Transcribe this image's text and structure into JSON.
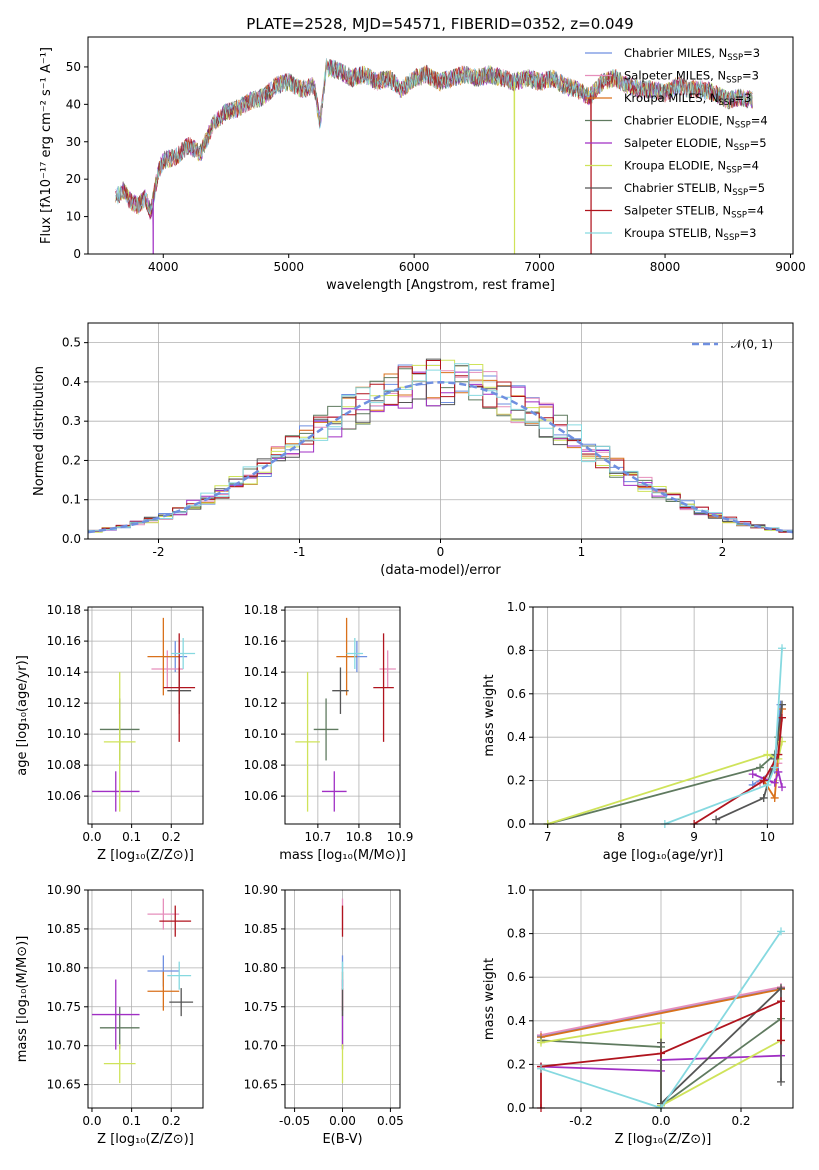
{
  "colors": {
    "Chabrier MILES": "#6f8fe0",
    "Salpeter MILES": "#e68fbc",
    "Kroupa MILES": "#d9711b",
    "Chabrier ELODIE": "#5f7a5f",
    "Salpeter ELODIE": "#a02fc4",
    "Kroupa ELODIE": "#cfe35a",
    "Chabrier STELIB": "#555555",
    "Salpeter STELIB": "#b0141e",
    "Kroupa STELIB": "#86d9e0"
  },
  "chart_data": [
    {
      "id": "spectrum",
      "type": "line",
      "title": "PLATE=2528, MJD=54571, FIBERID=0352, z=0.049",
      "xlabel": "wavelength [Angstrom, rest frame]",
      "ylabel": "Flux [fλ10⁻¹⁷ erg cm⁻² s⁻¹ A⁻¹]",
      "xlim": [
        3400,
        9020
      ],
      "ylim": [
        0,
        58
      ],
      "xticks": [
        4000,
        5000,
        6000,
        7000,
        8000,
        9000
      ],
      "yticks": [
        0,
        10,
        20,
        30,
        40,
        50
      ],
      "legend_position": "top-right",
      "legend": [
        {
          "name": "Chabrier MILES, N",
          "sub": "SSP",
          "suffix": "=3"
        },
        {
          "name": "Salpeter MILES, N",
          "sub": "SSP",
          "suffix": "=3"
        },
        {
          "name": "Kroupa MILES, N",
          "sub": "SSP",
          "suffix": "=3"
        },
        {
          "name": "Chabrier ELODIE, N",
          "sub": "SSP",
          "suffix": "=4"
        },
        {
          "name": "Salpeter ELODIE, N",
          "sub": "SSP",
          "suffix": "=5"
        },
        {
          "name": "Kroupa ELODIE, N",
          "sub": "SSP",
          "suffix": "=4"
        },
        {
          "name": "Chabrier STELIB, N",
          "sub": "SSP",
          "suffix": "=5"
        },
        {
          "name": "Salpeter STELIB, N",
          "sub": "SSP",
          "suffix": "=4"
        },
        {
          "name": "Kroupa STELIB, N",
          "sub": "SSP",
          "suffix": "=3"
        }
      ],
      "envelope": [
        [
          3620,
          15
        ],
        [
          3680,
          17
        ],
        [
          3740,
          14
        ],
        [
          3800,
          13
        ],
        [
          3860,
          15
        ],
        [
          3900,
          11
        ],
        [
          3960,
          22
        ],
        [
          4000,
          25
        ],
        [
          4100,
          26
        ],
        [
          4200,
          29
        ],
        [
          4300,
          27
        ],
        [
          4400,
          35
        ],
        [
          4500,
          38
        ],
        [
          4600,
          39
        ],
        [
          4700,
          41
        ],
        [
          4800,
          42
        ],
        [
          4900,
          45
        ],
        [
          5000,
          46
        ],
        [
          5100,
          44
        ],
        [
          5200,
          45
        ],
        [
          5250,
          35
        ],
        [
          5300,
          50
        ],
        [
          5400,
          49
        ],
        [
          5500,
          47
        ],
        [
          5600,
          48
        ],
        [
          5700,
          46
        ],
        [
          5800,
          47
        ],
        [
          5900,
          44
        ],
        [
          6000,
          47
        ],
        [
          6100,
          48
        ],
        [
          6200,
          46
        ],
        [
          6300,
          47
        ],
        [
          6400,
          48
        ],
        [
          6500,
          47
        ],
        [
          6600,
          48
        ],
        [
          6700,
          47
        ],
        [
          6800,
          46
        ],
        [
          6900,
          47
        ],
        [
          7000,
          46
        ],
        [
          7100,
          47
        ],
        [
          7200,
          45
        ],
        [
          7300,
          44
        ],
        [
          7400,
          42
        ],
        [
          7500,
          46
        ],
        [
          7600,
          47
        ],
        [
          7700,
          45
        ],
        [
          7800,
          44
        ],
        [
          7900,
          44
        ],
        [
          8000,
          43
        ],
        [
          8100,
          45
        ],
        [
          8200,
          44
        ],
        [
          8300,
          44
        ],
        [
          8400,
          43
        ],
        [
          8500,
          41
        ],
        [
          8600,
          42
        ],
        [
          8700,
          41
        ]
      ],
      "dropouts": [
        [
          3920,
          "Salpeter ELODIE"
        ],
        [
          6800,
          "Kroupa ELODIE"
        ],
        [
          7410,
          "Salpeter STELIB"
        ]
      ]
    },
    {
      "id": "residuals",
      "type": "step",
      "xlabel": "(data-model)/error",
      "ylabel": "Normed distribution",
      "xlim": [
        -2.5,
        2.5
      ],
      "ylim": [
        0,
        0.55
      ],
      "xticks": [
        -2,
        -1,
        0,
        1,
        2
      ],
      "yticks": [
        0.0,
        0.1,
        0.2,
        0.3,
        0.4,
        0.5
      ],
      "grid": true,
      "legend_position": "top-right",
      "reference_curve": {
        "name": "𝒩(0, 1)",
        "mean": 0,
        "sigma": 1,
        "color": "#6f8fe0"
      },
      "bin_width": 0.1
    },
    {
      "id": "age_vs_Z",
      "type": "errorbar",
      "xlabel": "Z [log₁₀(Z/Z⊙)]",
      "ylabel": "age  [log₁₀(age/yr)]",
      "xlim": [
        -0.01,
        0.28
      ],
      "ylim": [
        10.042,
        10.182
      ],
      "xticks": [
        0.0,
        0.1,
        0.2
      ],
      "yticks": [
        10.06,
        10.08,
        10.1,
        10.12,
        10.14,
        10.16,
        10.18
      ],
      "grid": true,
      "points": [
        {
          "series": "Chabrier MILES",
          "x": 0.21,
          "y": 10.15,
          "xerr": 0.03,
          "yerr": 0.01
        },
        {
          "series": "Salpeter MILES",
          "x": 0.19,
          "y": 10.142,
          "xerr": 0.04,
          "yerr": 0.012
        },
        {
          "series": "Kroupa MILES",
          "x": 0.18,
          "y": 10.15,
          "xerr": 0.04,
          "yerr": 0.025
        },
        {
          "series": "Chabrier ELODIE",
          "x": 0.07,
          "y": 10.103,
          "xerr": 0.05,
          "yerr": 0.02
        },
        {
          "series": "Salpeter ELODIE",
          "x": 0.06,
          "y": 10.063,
          "xerr": 0.06,
          "yerr": 0.013
        },
        {
          "series": "Kroupa ELODIE",
          "x": 0.07,
          "y": 10.095,
          "xerr": 0.04,
          "yerr": 0.045
        },
        {
          "series": "Chabrier STELIB",
          "x": 0.22,
          "y": 10.128,
          "xerr": 0.03,
          "yerr": 0.015
        },
        {
          "series": "Salpeter STELIB",
          "x": 0.22,
          "y": 10.13,
          "xerr": 0.04,
          "yerr": 0.035
        },
        {
          "series": "Kroupa STELIB",
          "x": 0.23,
          "y": 10.152,
          "xerr": 0.03,
          "yerr": 0.01
        }
      ]
    },
    {
      "id": "age_vs_mass",
      "type": "errorbar",
      "xlabel": "mass [log₁₀(M/M⊙)]",
      "ylabel": "",
      "xlim": [
        10.62,
        10.9
      ],
      "ylim": [
        10.042,
        10.182
      ],
      "xticks": [
        10.7,
        10.8,
        10.9
      ],
      "yticks": [
        10.06,
        10.08,
        10.1,
        10.12,
        10.14,
        10.16,
        10.18
      ],
      "grid": true,
      "points": [
        {
          "series": "Chabrier MILES",
          "x": 10.795,
          "y": 10.15,
          "xerr": 0.025,
          "yerr": 0.01
        },
        {
          "series": "Salpeter MILES",
          "x": 10.87,
          "y": 10.142,
          "xerr": 0.02,
          "yerr": 0.012
        },
        {
          "series": "Kroupa MILES",
          "x": 10.77,
          "y": 10.15,
          "xerr": 0.025,
          "yerr": 0.025
        },
        {
          "series": "Chabrier ELODIE",
          "x": 10.72,
          "y": 10.103,
          "xerr": 0.03,
          "yerr": 0.02
        },
        {
          "series": "Salpeter ELODIE",
          "x": 10.74,
          "y": 10.063,
          "xerr": 0.03,
          "yerr": 0.013
        },
        {
          "series": "Kroupa ELODIE",
          "x": 10.675,
          "y": 10.095,
          "xerr": 0.03,
          "yerr": 0.045
        },
        {
          "series": "Chabrier STELIB",
          "x": 10.755,
          "y": 10.128,
          "xerr": 0.02,
          "yerr": 0.015
        },
        {
          "series": "Salpeter STELIB",
          "x": 10.86,
          "y": 10.13,
          "xerr": 0.025,
          "yerr": 0.035
        },
        {
          "series": "Kroupa STELIB",
          "x": 10.79,
          "y": 10.152,
          "xerr": 0.02,
          "yerr": 0.01
        }
      ]
    },
    {
      "id": "massweight_vs_age",
      "type": "line",
      "xlabel": "age  [log₁₀(age/yr)]",
      "ylabel": "mass weight",
      "xlim": [
        6.8,
        10.35
      ],
      "ylim": [
        0,
        1
      ],
      "xticks": [
        7,
        8,
        9,
        10
      ],
      "yticks": [
        0.0,
        0.2,
        0.4,
        0.6,
        0.8,
        1.0
      ],
      "grid": true,
      "series": [
        {
          "name": "Chabrier MILES",
          "points": [
            [
              9.8,
              0.18
            ],
            [
              10.1,
              0.25
            ],
            [
              10.18,
              0.55
            ]
          ]
        },
        {
          "name": "Salpeter MILES",
          "points": [
            [
              9.9,
              0.19
            ],
            [
              10.15,
              0.28
            ],
            [
              10.2,
              0.53
            ]
          ]
        },
        {
          "name": "Kroupa MILES",
          "points": [
            [
              9.95,
              0.2
            ],
            [
              10.1,
              0.12
            ],
            [
              10.2,
              0.53
            ]
          ]
        },
        {
          "name": "Chabrier ELODIE",
          "points": [
            [
              7.0,
              0.0
            ],
            [
              9.9,
              0.26
            ],
            [
              10.1,
              0.32
            ],
            [
              10.15,
              0.4
            ]
          ]
        },
        {
          "name": "Salpeter ELODIE",
          "points": [
            [
              9.8,
              0.23
            ],
            [
              10.1,
              0.19
            ],
            [
              10.15,
              0.24
            ],
            [
              10.2,
              0.17
            ]
          ]
        },
        {
          "name": "Kroupa ELODIE",
          "points": [
            [
              7.0,
              0.0
            ],
            [
              10.0,
              0.32
            ],
            [
              10.15,
              0.3
            ],
            [
              10.2,
              0.38
            ]
          ]
        },
        {
          "name": "Chabrier STELIB",
          "points": [
            [
              9.3,
              0.02
            ],
            [
              9.95,
              0.12
            ],
            [
              10.1,
              0.3
            ],
            [
              10.2,
              0.55
            ]
          ]
        },
        {
          "name": "Salpeter STELIB",
          "points": [
            [
              9.0,
              0.0
            ],
            [
              9.95,
              0.2
            ],
            [
              10.15,
              0.32
            ],
            [
              10.2,
              0.49
            ]
          ]
        },
        {
          "name": "Kroupa STELIB",
          "points": [
            [
              8.6,
              0.0
            ],
            [
              10.0,
              0.18
            ],
            [
              10.1,
              0.26
            ],
            [
              10.2,
              0.81
            ]
          ]
        }
      ]
    },
    {
      "id": "mass_vs_Z",
      "type": "errorbar",
      "xlabel": "Z [log₁₀(Z/Z⊙)]",
      "ylabel": "mass [log₁₀(M/M⊙)]",
      "xlim": [
        -0.01,
        0.28
      ],
      "ylim": [
        10.62,
        10.9
      ],
      "xticks": [
        0.0,
        0.1,
        0.2
      ],
      "yticks": [
        10.65,
        10.7,
        10.75,
        10.8,
        10.85,
        10.9
      ],
      "grid": true,
      "points": [
        {
          "series": "Chabrier MILES",
          "x": 0.18,
          "y": 10.796,
          "xerr": 0.04,
          "yerr": 0.02
        },
        {
          "series": "Salpeter MILES",
          "x": 0.18,
          "y": 10.869,
          "xerr": 0.04,
          "yerr": 0.02
        },
        {
          "series": "Kroupa MILES",
          "x": 0.18,
          "y": 10.77,
          "xerr": 0.04,
          "yerr": 0.025
        },
        {
          "series": "Chabrier ELODIE",
          "x": 0.07,
          "y": 10.723,
          "xerr": 0.05,
          "yerr": 0.027
        },
        {
          "series": "Salpeter ELODIE",
          "x": 0.06,
          "y": 10.74,
          "xerr": 0.06,
          "yerr": 0.045
        },
        {
          "series": "Kroupa ELODIE",
          "x": 0.07,
          "y": 10.677,
          "xerr": 0.04,
          "yerr": 0.025
        },
        {
          "series": "Chabrier STELIB",
          "x": 0.225,
          "y": 10.756,
          "xerr": 0.03,
          "yerr": 0.018
        },
        {
          "series": "Salpeter STELIB",
          "x": 0.21,
          "y": 10.86,
          "xerr": 0.04,
          "yerr": 0.02
        },
        {
          "series": "Kroupa STELIB",
          "x": 0.22,
          "y": 10.79,
          "xerr": 0.03,
          "yerr": 0.018
        }
      ]
    },
    {
      "id": "mass_vs_EBV",
      "type": "errorbar",
      "xlabel": "E(B-V)",
      "ylabel": "",
      "xlim": [
        -0.06,
        0.06
      ],
      "ylim": [
        10.62,
        10.9
      ],
      "xticks": [
        -0.05,
        0.0,
        0.05
      ],
      "yticks": [
        10.65,
        10.7,
        10.75,
        10.8,
        10.85,
        10.9
      ],
      "grid": true,
      "points": [
        {
          "series": "Chabrier MILES",
          "x": 0.0,
          "y": 10.796,
          "xerr": 0,
          "yerr": 0.02
        },
        {
          "series": "Salpeter MILES",
          "x": 0.0,
          "y": 10.869,
          "xerr": 0,
          "yerr": 0.02
        },
        {
          "series": "Kroupa MILES",
          "x": 0.0,
          "y": 10.77,
          "xerr": 0,
          "yerr": 0.025
        },
        {
          "series": "Chabrier ELODIE",
          "x": 0.0,
          "y": 10.723,
          "xerr": 0,
          "yerr": 0.027
        },
        {
          "series": "Salpeter ELODIE",
          "x": 0.0,
          "y": 10.74,
          "xerr": 0,
          "yerr": 0.045
        },
        {
          "series": "Kroupa ELODIE",
          "x": 0.0,
          "y": 10.677,
          "xerr": 0,
          "yerr": 0.025
        },
        {
          "series": "Chabrier STELIB",
          "x": 0.0,
          "y": 10.756,
          "xerr": 0,
          "yerr": 0.018
        },
        {
          "series": "Salpeter STELIB",
          "x": 0.0,
          "y": 10.86,
          "xerr": 0,
          "yerr": 0.02
        },
        {
          "series": "Kroupa STELIB",
          "x": 0.0,
          "y": 10.79,
          "xerr": 0,
          "yerr": 0.018
        }
      ]
    },
    {
      "id": "massweight_vs_Z",
      "type": "line",
      "xlabel": "Z [log₁₀(Z/Z⊙)]",
      "ylabel": "mass weight",
      "xlim": [
        -0.32,
        0.33
      ],
      "ylim": [
        0,
        1
      ],
      "xticks": [
        -0.2,
        0.0,
        0.2
      ],
      "yticks": [
        0.0,
        0.2,
        0.4,
        0.6,
        0.8,
        1.0
      ],
      "grid": true,
      "series": [
        {
          "name": "Chabrier MILES",
          "points": [
            [
              -0.3,
              0.33
            ],
            [
              0.3,
              0.55
            ]
          ]
        },
        {
          "name": "Salpeter MILES",
          "points": [
            [
              -0.3,
              0.335
            ],
            [
              0.3,
              0.555
            ]
          ]
        },
        {
          "name": "Kroupa MILES",
          "points": [
            [
              -0.3,
              0.325
            ],
            [
              0.3,
              0.545
            ]
          ]
        },
        {
          "name": "Chabrier ELODIE",
          "points": [
            [
              -0.3,
              0.31
            ],
            [
              0.0,
              0.28
            ],
            [
              0.0,
              0.01
            ],
            [
              0.3,
              0.41
            ]
          ]
        },
        {
          "name": "Salpeter ELODIE",
          "points": [
            [
              -0.3,
              0.19
            ],
            [
              0.0,
              0.17
            ],
            [
              0.0,
              0.22
            ],
            [
              0.3,
              0.24
            ]
          ]
        },
        {
          "name": "Kroupa ELODIE",
          "points": [
            [
              -0.3,
              0.3
            ],
            [
              0.0,
              0.39
            ],
            [
              0.0,
              0.01
            ],
            [
              0.3,
              0.31
            ]
          ]
        },
        {
          "name": "Chabrier STELIB",
          "points": [
            [
              0.0,
              0.3
            ],
            [
              0.0,
              0.02
            ],
            [
              0.3,
              0.55
            ],
            [
              0.3,
              0.12
            ]
          ]
        },
        {
          "name": "Salpeter STELIB",
          "points": [
            [
              -0.3,
              0.0
            ],
            [
              -0.3,
              0.19
            ],
            [
              0.0,
              0.25
            ],
            [
              0.3,
              0.49
            ],
            [
              0.3,
              0.31
            ]
          ]
        },
        {
          "name": "Kroupa STELIB",
          "points": [
            [
              -0.3,
              0.18
            ],
            [
              0.0,
              0.0
            ],
            [
              0.3,
              0.81
            ]
          ]
        }
      ]
    }
  ]
}
